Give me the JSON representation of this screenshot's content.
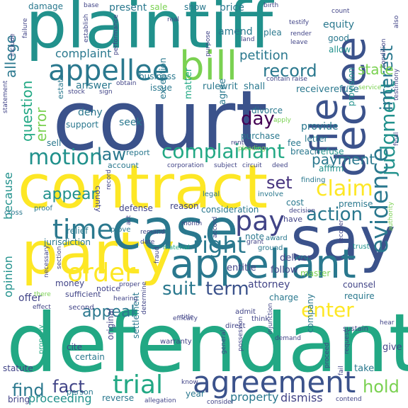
{
  "palette": {
    "navy": "#3b528b",
    "indigo": "#414487",
    "teal": "#21918c",
    "sea": "#2a788e",
    "green": "#22a884",
    "lime": "#7ad151",
    "yellow": "#fde725",
    "purple": "#440154",
    "dark_purple": "#46337e"
  },
  "words": [
    {
      "text": "court",
      "color": "navy"
    },
    {
      "text": "defendant",
      "color": "green"
    },
    {
      "text": "plaintiff",
      "color": "teal"
    },
    {
      "text": "contract",
      "color": "yellow"
    },
    {
      "text": "say",
      "color": "navy"
    },
    {
      "text": "party",
      "color": "yellow"
    },
    {
      "text": "case",
      "color": "sea"
    },
    {
      "text": "appellant",
      "color": "sea"
    },
    {
      "text": "decree",
      "color": "navy"
    },
    {
      "text": "bill",
      "color": "lime"
    },
    {
      "text": "file",
      "color": "navy"
    },
    {
      "text": "agreement",
      "color": "navy"
    },
    {
      "text": "appellee",
      "color": "sea"
    },
    {
      "text": "evidence",
      "color": "sea"
    },
    {
      "text": "judgment",
      "color": "teal"
    },
    {
      "text": "interest",
      "color": "sea"
    },
    {
      "text": "time",
      "color": "sea"
    },
    {
      "text": "order",
      "color": "yellow"
    },
    {
      "text": "pay",
      "color": "indigo"
    },
    {
      "text": "right",
      "color": "sea"
    },
    {
      "text": "trial",
      "color": "green"
    },
    {
      "text": "claim",
      "color": "yellow"
    },
    {
      "text": "complainant",
      "color": "green"
    },
    {
      "text": "record",
      "color": "sea"
    },
    {
      "text": "appeal",
      "color": "sea"
    },
    {
      "text": "fact",
      "color": "indigo"
    },
    {
      "text": "find",
      "color": "sea"
    },
    {
      "text": "motion",
      "color": "teal"
    },
    {
      "text": "law",
      "color": "sea"
    },
    {
      "text": "action",
      "color": "sea"
    },
    {
      "text": "enter",
      "color": "yellow"
    },
    {
      "text": "suit",
      "color": "sea"
    },
    {
      "text": "term",
      "color": "navy"
    },
    {
      "text": "hold",
      "color": "lime"
    },
    {
      "text": "allege",
      "color": "sea"
    },
    {
      "text": "error",
      "color": "lime"
    },
    {
      "text": "question",
      "color": "green"
    },
    {
      "text": "day",
      "color": "purple"
    },
    {
      "text": "set",
      "color": "dark_purple"
    },
    {
      "text": "payment",
      "color": "sea"
    },
    {
      "text": "appear",
      "color": "teal"
    },
    {
      "text": "state",
      "color": "lime"
    },
    {
      "text": "petition",
      "color": "sea"
    },
    {
      "text": "because",
      "color": "teal"
    },
    {
      "text": "opinion",
      "color": "teal"
    },
    {
      "text": "proceeding",
      "color": "teal"
    },
    {
      "text": "property",
      "color": "sea"
    },
    {
      "text": "dismiss",
      "color": "indigo"
    },
    {
      "text": "complaint",
      "color": "sea"
    },
    {
      "text": "present",
      "color": "sea"
    },
    {
      "text": "price",
      "color": "sea"
    },
    {
      "text": "damage",
      "color": "sea"
    },
    {
      "text": "sale",
      "color": "lime"
    },
    {
      "text": "show",
      "color": "sea"
    },
    {
      "text": "equity",
      "color": "sea"
    },
    {
      "text": "good",
      "color": "sea"
    },
    {
      "text": "allow",
      "color": "teal"
    },
    {
      "text": "amend",
      "color": "sea"
    },
    {
      "text": "plea",
      "color": "sea"
    },
    {
      "text": "business",
      "color": "sea"
    },
    {
      "text": "answer",
      "color": "sea"
    },
    {
      "text": "issue",
      "color": "sea"
    },
    {
      "text": "rule",
      "color": "sea"
    },
    {
      "text": "writ",
      "color": "sea"
    },
    {
      "text": "shall",
      "color": "sea"
    },
    {
      "text": "receive",
      "color": "sea"
    },
    {
      "text": "refuse",
      "color": "sea"
    },
    {
      "text": "provision",
      "color": "teal"
    },
    {
      "text": "deny",
      "color": "sea"
    },
    {
      "text": "support",
      "color": "sea"
    },
    {
      "text": "seek",
      "color": "sea"
    },
    {
      "text": "exception",
      "color": "sea"
    },
    {
      "text": "matter",
      "color": "green"
    },
    {
      "text": "agree",
      "color": "sea"
    },
    {
      "text": "divorce",
      "color": "sea"
    },
    {
      "text": "provide",
      "color": "sea"
    },
    {
      "text": "letter",
      "color": "sea"
    },
    {
      "text": "purchase",
      "color": "sea"
    },
    {
      "text": "fee",
      "color": "sea"
    },
    {
      "text": "breach",
      "color": "sea"
    },
    {
      "text": "refuse",
      "color": "teal"
    },
    {
      "text": "affirm",
      "color": "teal"
    },
    {
      "text": "estate",
      "color": "sea"
    },
    {
      "text": "sell",
      "color": "sea"
    },
    {
      "text": "account",
      "color": "sea"
    },
    {
      "text": "report",
      "color": "sea"
    },
    {
      "text": "county",
      "color": "indigo"
    },
    {
      "text": "defense",
      "color": "indigo"
    },
    {
      "text": "reason",
      "color": "indigo"
    },
    {
      "text": "consideration",
      "color": "sea"
    },
    {
      "text": "cost",
      "color": "sea"
    },
    {
      "text": "premise",
      "color": "sea"
    },
    {
      "text": "relief",
      "color": "sea"
    },
    {
      "text": "jurisdiction",
      "color": "sea"
    },
    {
      "text": "note",
      "color": "sea"
    },
    {
      "text": "deliver",
      "color": "indigo"
    },
    {
      "text": "entitle",
      "color": "indigo"
    },
    {
      "text": "follow",
      "color": "indigo"
    },
    {
      "text": "money",
      "color": "indigo"
    },
    {
      "text": "attorney",
      "color": "indigo"
    },
    {
      "text": "counsel",
      "color": "indigo"
    },
    {
      "text": "charge",
      "color": "sea"
    },
    {
      "text": "require",
      "color": "sea"
    },
    {
      "text": "offer",
      "color": "indigo"
    },
    {
      "text": "sufficient",
      "color": "indigo"
    },
    {
      "text": "notice",
      "color": "indigo"
    },
    {
      "text": "cite",
      "color": "indigo"
    },
    {
      "text": "certain",
      "color": "sea"
    },
    {
      "text": "original",
      "color": "indigo"
    },
    {
      "text": "settlement",
      "color": "sea"
    },
    {
      "text": "company",
      "color": "sea"
    },
    {
      "text": "take",
      "color": "sea"
    },
    {
      "text": "give",
      "color": "indigo"
    },
    {
      "text": "bring",
      "color": "indigo"
    },
    {
      "text": "reverse",
      "color": "sea"
    },
    {
      "text": "year",
      "color": "sea"
    },
    {
      "text": "person",
      "color": "sea"
    },
    {
      "text": "statute",
      "color": "indigo"
    },
    {
      "text": "proof",
      "color": "sea"
    },
    {
      "text": "cross",
      "color": "sea"
    },
    {
      "text": "prove",
      "color": "sea"
    },
    {
      "text": "legal",
      "color": "sea"
    },
    {
      "text": "involve",
      "color": "sea"
    },
    {
      "text": "have",
      "color": "indigo"
    },
    {
      "text": "finding",
      "color": "sea"
    },
    {
      "text": "ground",
      "color": "sea"
    },
    {
      "text": "award",
      "color": "sea"
    },
    {
      "text": "master",
      "color": "lime"
    },
    {
      "text": "second",
      "color": "indigo"
    },
    {
      "text": "sustain",
      "color": "indigo"
    },
    {
      "text": "think",
      "color": "indigo"
    },
    {
      "text": "admit",
      "color": "indigo"
    },
    {
      "text": "direct",
      "color": "indigo"
    },
    {
      "text": "warranty",
      "color": "indigo"
    },
    {
      "text": "determine",
      "color": "indigo"
    },
    {
      "text": "hearing",
      "color": "indigo"
    },
    {
      "text": "date",
      "color": "indigo"
    },
    {
      "text": "month",
      "color": "indigo"
    },
    {
      "text": "remand",
      "color": "indigo"
    },
    {
      "text": "act",
      "color": "indigo"
    },
    {
      "text": "material",
      "color": "green"
    },
    {
      "text": "grant",
      "color": "indigo"
    },
    {
      "text": "trust",
      "color": "teal"
    },
    {
      "text": "recover",
      "color": "indigo"
    },
    {
      "text": "authority",
      "color": "lime"
    },
    {
      "text": "decision",
      "color": "indigo"
    },
    {
      "text": "section",
      "color": "indigo"
    },
    {
      "text": "necessary",
      "color": "indigo"
    },
    {
      "text": "effect",
      "color": "indigo"
    },
    {
      "text": "there",
      "color": "lime"
    },
    {
      "text": "proper",
      "color": "indigo"
    },
    {
      "text": "properly",
      "color": "green"
    },
    {
      "text": "general",
      "color": "indigo"
    },
    {
      "text": "demand",
      "color": "indigo"
    },
    {
      "text": "possession",
      "color": "indigo"
    },
    {
      "text": "proceed",
      "color": "indigo"
    },
    {
      "text": "fail",
      "color": "indigo"
    },
    {
      "text": "request",
      "color": "indigo"
    },
    {
      "text": "contend",
      "color": "indigo"
    },
    {
      "text": "allegation",
      "color": "indigo"
    },
    {
      "text": "consider",
      "color": "indigo"
    },
    {
      "text": "know",
      "color": "indigo"
    },
    {
      "text": "title",
      "color": "indigo"
    },
    {
      "text": "injunction",
      "color": "indigo"
    },
    {
      "text": "hear",
      "color": "indigo"
    },
    {
      "text": "efficacy",
      "color": "indigo"
    },
    {
      "text": "fraud",
      "color": "indigo"
    },
    {
      "text": "accord",
      "color": "indigo"
    },
    {
      "text": "record",
      "color": "indigo"
    },
    {
      "text": "corporation",
      "color": "indigo"
    },
    {
      "text": "subject",
      "color": "indigo"
    },
    {
      "text": "circuit",
      "color": "indigo"
    },
    {
      "text": "deed",
      "color": "indigo"
    },
    {
      "text": "rent",
      "color": "indigo"
    },
    {
      "text": "pleading",
      "color": "lime"
    },
    {
      "text": "apply",
      "color": "lime"
    },
    {
      "text": "stock",
      "color": "indigo"
    },
    {
      "text": "sign",
      "color": "indigo"
    },
    {
      "text": "obtain",
      "color": "indigo"
    },
    {
      "text": "statement",
      "color": "indigo"
    },
    {
      "text": "failure",
      "color": "indigo"
    },
    {
      "text": "include",
      "color": "indigo"
    },
    {
      "text": "establish",
      "color": "indigo"
    },
    {
      "text": "performance",
      "color": "indigo"
    },
    {
      "text": "purpose",
      "color": "indigo"
    },
    {
      "text": "real",
      "color": "indigo"
    },
    {
      "text": "land",
      "color": "indigo"
    },
    {
      "text": "contain",
      "color": "indigo"
    },
    {
      "text": "raise",
      "color": "indigo"
    },
    {
      "text": "render",
      "color": "indigo"
    },
    {
      "text": "leave",
      "color": "indigo"
    },
    {
      "text": "testify",
      "color": "indigo"
    },
    {
      "text": "count",
      "color": "indigo"
    },
    {
      "text": "birth",
      "color": "indigo"
    },
    {
      "text": "condition",
      "color": "indigo"
    },
    {
      "text": "service",
      "color": "lime"
    },
    {
      "text": "testimony",
      "color": "indigo"
    },
    {
      "text": "final",
      "color": "indigo"
    },
    {
      "text": "base",
      "color": "indigo"
    },
    {
      "text": "also",
      "color": "indigo"
    }
  ]
}
